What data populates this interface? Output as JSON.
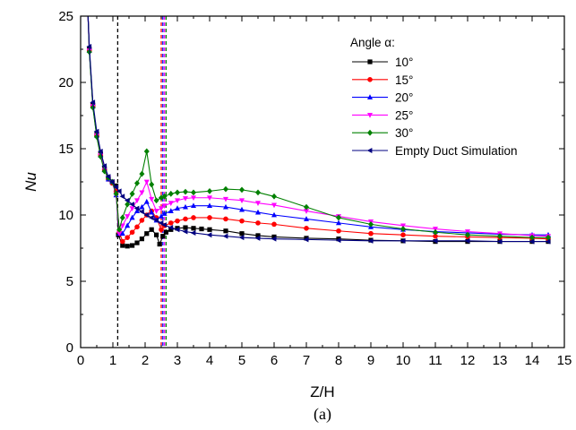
{
  "chart_data": {
    "type": "line",
    "xlabel": "Z/H",
    "ylabel": "Nu",
    "caption": "(a)",
    "xlim": [
      0,
      15
    ],
    "ylim": [
      0,
      25
    ],
    "x_ticks": [
      0,
      0.5,
      1,
      1.5,
      2,
      2.5,
      3,
      3.5,
      4,
      4.5,
      5,
      5.5,
      6,
      6.5,
      7,
      7.5,
      8,
      8.5,
      9,
      9.5,
      10,
      10.5,
      11,
      11.5,
      12,
      12.5,
      13,
      13.5,
      14,
      14.5,
      15
    ],
    "x_tick_labels": [
      "0",
      "1",
      "2",
      "3",
      "4",
      "5",
      "6",
      "7",
      "8",
      "9",
      "10",
      "11",
      "12",
      "13",
      "14",
      "15"
    ],
    "y_ticks": [
      0,
      5,
      10,
      15,
      20,
      25
    ],
    "grid": false,
    "legend": {
      "title": "Angle α:",
      "placement": "top-right"
    },
    "series": [
      {
        "name": "10°",
        "color": "#000000",
        "marker": "square",
        "x": [
          0.27,
          0.38,
          0.5,
          0.62,
          0.74,
          0.86,
          0.98,
          1.1,
          1.17,
          1.3,
          1.45,
          1.6,
          1.75,
          1.9,
          2.05,
          2.2,
          2.35,
          2.45,
          2.55,
          2.65,
          2.8,
          3.0,
          3.25,
          3.5,
          3.75,
          4.0,
          4.5,
          5.0,
          5.5,
          6.0,
          7.0,
          8.0,
          9.0,
          10.0,
          11.0,
          12.0,
          13.0,
          14.0,
          14.5
        ],
        "y": [
          22.5,
          18.3,
          16.1,
          14.6,
          13.5,
          12.8,
          12.5,
          12.2,
          8.5,
          7.7,
          7.65,
          7.7,
          7.9,
          8.2,
          8.6,
          8.9,
          8.5,
          7.8,
          8.4,
          8.7,
          8.9,
          9.0,
          9.05,
          9.0,
          8.95,
          8.9,
          8.8,
          8.6,
          8.45,
          8.35,
          8.25,
          8.2,
          8.1,
          8.05,
          8.0,
          8.0,
          8.0,
          8.0,
          8.0
        ]
      },
      {
        "name": "15°",
        "color": "#ff0000",
        "marker": "circle",
        "x": [
          0.27,
          0.38,
          0.5,
          0.62,
          0.74,
          0.86,
          0.98,
          1.1,
          1.2,
          1.3,
          1.45,
          1.6,
          1.75,
          1.9,
          2.05,
          2.2,
          2.35,
          2.5,
          2.6,
          2.8,
          3.0,
          3.25,
          3.5,
          4.0,
          4.5,
          5.0,
          5.5,
          6.0,
          7.0,
          8.0,
          9.0,
          10.0,
          11.0,
          12.0,
          13.0,
          14.0,
          14.5
        ],
        "y": [
          22.4,
          18.2,
          16.0,
          14.5,
          13.4,
          12.7,
          12.4,
          11.8,
          8.7,
          8.0,
          8.3,
          8.7,
          9.1,
          9.6,
          10.0,
          10.3,
          9.8,
          8.9,
          9.2,
          9.4,
          9.55,
          9.7,
          9.8,
          9.8,
          9.7,
          9.55,
          9.4,
          9.3,
          9.0,
          8.8,
          8.6,
          8.5,
          8.4,
          8.35,
          8.3,
          8.25,
          8.2
        ]
      },
      {
        "name": "20°",
        "color": "#0000ff",
        "marker": "triangle-up",
        "x": [
          0.27,
          0.38,
          0.5,
          0.62,
          0.74,
          0.86,
          0.98,
          1.1,
          1.2,
          1.3,
          1.45,
          1.6,
          1.75,
          1.9,
          2.05,
          2.2,
          2.35,
          2.5,
          2.6,
          2.8,
          3.0,
          3.25,
          3.5,
          4.0,
          4.5,
          5.0,
          5.5,
          6.0,
          7.0,
          8.0,
          9.0,
          10.0,
          11.0,
          12.0,
          13.0,
          14.0,
          14.5
        ],
        "y": [
          22.4,
          18.2,
          16.0,
          14.5,
          13.4,
          12.7,
          12.5,
          11.5,
          8.6,
          8.6,
          9.2,
          9.8,
          10.3,
          10.6,
          11.0,
          10.2,
          9.6,
          9.9,
          10.1,
          10.3,
          10.5,
          10.6,
          10.7,
          10.7,
          10.6,
          10.4,
          10.2,
          10.0,
          9.7,
          9.4,
          9.1,
          8.9,
          8.75,
          8.65,
          8.55,
          8.5,
          8.5
        ]
      },
      {
        "name": "25°",
        "color": "#ff00ff",
        "marker": "triangle-down",
        "x": [
          0.27,
          0.38,
          0.5,
          0.62,
          0.74,
          0.86,
          0.98,
          1.1,
          1.2,
          1.3,
          1.45,
          1.6,
          1.75,
          1.9,
          2.05,
          2.2,
          2.35,
          2.5,
          2.6,
          2.8,
          3.0,
          3.25,
          3.5,
          4.0,
          4.5,
          5.0,
          5.5,
          6.0,
          7.0,
          8.0,
          9.0,
          10.0,
          11.0,
          12.0,
          13.0,
          14.0,
          14.5
        ],
        "y": [
          22.4,
          18.2,
          16.0,
          14.5,
          13.4,
          12.8,
          12.5,
          11.5,
          8.6,
          9.2,
          9.9,
          10.5,
          11.1,
          11.7,
          12.5,
          11.2,
          10.3,
          10.5,
          10.7,
          10.9,
          11.1,
          11.25,
          11.3,
          11.3,
          11.2,
          11.1,
          10.9,
          10.75,
          10.3,
          9.9,
          9.5,
          9.2,
          8.95,
          8.75,
          8.6,
          8.45,
          8.4
        ]
      },
      {
        "name": "30°",
        "color": "#008000",
        "marker": "diamond",
        "x": [
          0.27,
          0.38,
          0.5,
          0.62,
          0.74,
          0.86,
          0.98,
          1.1,
          1.2,
          1.3,
          1.45,
          1.6,
          1.75,
          1.9,
          2.05,
          2.2,
          2.35,
          2.5,
          2.6,
          2.8,
          3.0,
          3.25,
          3.5,
          4.0,
          4.5,
          5.0,
          5.5,
          6.0,
          7.0,
          8.0,
          9.0,
          10.0,
          11.0,
          12.0,
          13.0,
          14.0,
          14.5
        ],
        "y": [
          22.3,
          18.1,
          15.9,
          14.4,
          13.3,
          12.8,
          12.5,
          11.6,
          8.9,
          9.8,
          10.8,
          11.6,
          12.4,
          13.1,
          14.8,
          12.3,
          11.1,
          11.3,
          11.4,
          11.6,
          11.7,
          11.75,
          11.7,
          11.8,
          11.95,
          11.9,
          11.7,
          11.4,
          10.6,
          9.8,
          9.3,
          8.95,
          8.7,
          8.5,
          8.4,
          8.3,
          8.3
        ]
      },
      {
        "name": "Empty Duct Simulation",
        "color": "#000080",
        "marker": "triangle-left",
        "x": [
          0.27,
          0.38,
          0.5,
          0.62,
          0.74,
          0.86,
          0.98,
          1.1,
          1.2,
          1.3,
          1.45,
          1.6,
          1.75,
          1.9,
          2.05,
          2.2,
          2.35,
          2.5,
          2.6,
          2.8,
          3.0,
          3.25,
          3.5,
          4.0,
          4.5,
          5.0,
          5.5,
          6.0,
          7.0,
          8.0,
          9.0,
          10.0,
          11.0,
          12.0,
          13.0,
          14.0,
          14.5
        ],
        "y": [
          22.7,
          18.5,
          16.3,
          14.8,
          13.7,
          12.9,
          12.5,
          12.1,
          11.8,
          11.4,
          11.1,
          10.8,
          10.5,
          10.25,
          10.0,
          9.8,
          9.6,
          9.4,
          9.25,
          9.05,
          8.9,
          8.75,
          8.65,
          8.5,
          8.4,
          8.3,
          8.25,
          8.2,
          8.15,
          8.1,
          8.05,
          8.05,
          8.05,
          8.05,
          8.0,
          8.0,
          8.0
        ]
      }
    ],
    "vertical_markers": [
      {
        "x": 1.15,
        "color": "#000000"
      },
      {
        "x": 2.5,
        "color": "#ff0000"
      },
      {
        "x": 2.55,
        "color": "#0000ff"
      },
      {
        "x": 2.6,
        "color": "#ff00ff"
      },
      {
        "x": 2.65,
        "color": "#008000"
      }
    ]
  }
}
